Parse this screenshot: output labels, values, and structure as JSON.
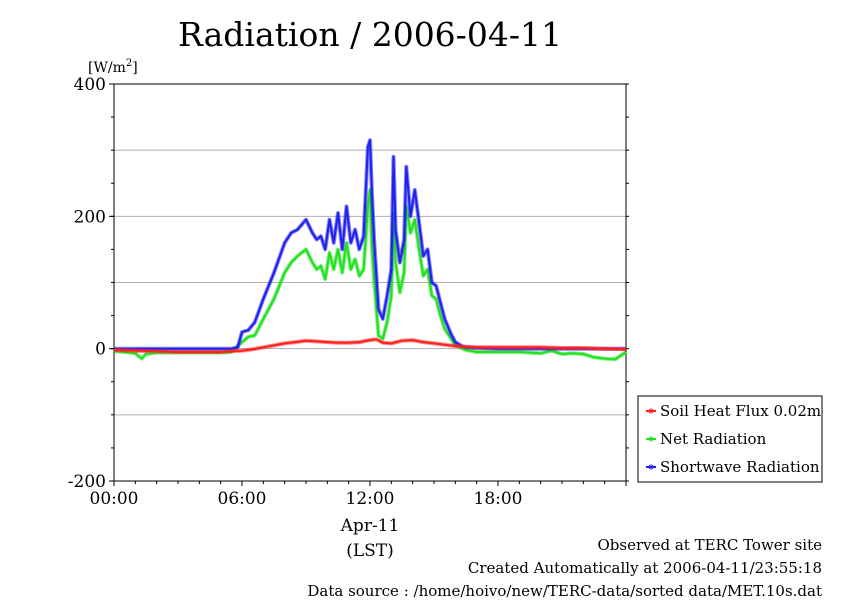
{
  "chart_data": {
    "type": "line",
    "title": "Radiation / 2006-04-11",
    "ylabel": "[W/m²]",
    "xlabel": "Apr-11",
    "xlabel2": "(LST)",
    "ylim": [
      -200,
      400
    ],
    "xlim_hours": [
      0,
      24
    ],
    "yticks": [
      -200,
      0,
      200,
      400
    ],
    "ytick_labels": [
      "-200",
      "0",
      "200",
      "400"
    ],
    "xticks": [
      0,
      6,
      12,
      18
    ],
    "xtick_labels": [
      "00:00",
      "06:00",
      "12:00",
      "18:00"
    ],
    "grid": true,
    "legend_position": "right",
    "series": [
      {
        "name": "Soil Heat Flux 0.02m",
        "color": "#ff2020",
        "x": [
          0,
          1,
          2,
          3,
          4,
          5,
          5.5,
          6,
          6.5,
          7,
          7.5,
          8,
          8.5,
          9,
          9.5,
          10,
          10.5,
          11,
          11.5,
          12,
          12.3,
          12.6,
          13,
          13.5,
          14,
          14.5,
          15,
          15.5,
          16,
          16.5,
          17,
          18,
          19,
          20,
          21,
          22,
          23,
          24
        ],
        "y": [
          -2,
          -3,
          -4,
          -5,
          -5,
          -5,
          -4,
          -3,
          -1,
          2,
          5,
          8,
          10,
          12,
          11,
          10,
          9,
          9,
          10,
          13,
          14,
          9,
          8,
          12,
          13,
          10,
          8,
          6,
          4,
          3,
          2,
          2,
          2,
          2,
          1,
          1,
          0,
          -1
        ]
      },
      {
        "name": "Net Radiation",
        "color": "#20e020",
        "x": [
          0,
          0.5,
          1,
          1.3,
          1.5,
          2,
          3,
          4,
          5,
          5.5,
          6,
          6.3,
          6.6,
          7,
          7.5,
          8,
          8.3,
          8.6,
          9,
          9.3,
          9.5,
          9.7,
          9.9,
          10.1,
          10.3,
          10.5,
          10.7,
          10.9,
          11.1,
          11.3,
          11.5,
          11.7,
          11.9,
          12.0,
          12.1,
          12.2,
          12.4,
          12.6,
          12.8,
          13.0,
          13.1,
          13.2,
          13.4,
          13.6,
          13.7,
          13.9,
          14.1,
          14.3,
          14.5,
          14.7,
          14.9,
          15.1,
          15.3,
          15.5,
          15.8,
          16,
          16.5,
          17,
          17.5,
          18,
          19,
          20,
          20.5,
          21,
          21.5,
          22,
          22.5,
          23,
          23.5,
          24
        ],
        "y": [
          -4,
          -5,
          -7,
          -15,
          -8,
          -6,
          -6,
          -6,
          -6,
          -5,
          10,
          18,
          20,
          45,
          75,
          115,
          130,
          140,
          150,
          130,
          120,
          125,
          105,
          145,
          120,
          150,
          115,
          160,
          120,
          135,
          110,
          120,
          215,
          240,
          150,
          100,
          20,
          15,
          40,
          80,
          205,
          130,
          85,
          115,
          215,
          175,
          195,
          150,
          110,
          120,
          80,
          75,
          50,
          30,
          15,
          5,
          -2,
          -5,
          -5,
          -5,
          -5,
          -7,
          -3,
          -8,
          -7,
          -8,
          -13,
          -15,
          -16,
          -5
        ]
      },
      {
        "name": "Shortwave Radiation",
        "color": "#2020f0",
        "x": [
          0,
          1,
          2,
          3,
          4,
          5,
          5.5,
          5.8,
          6,
          6.3,
          6.6,
          7,
          7.5,
          8,
          8.3,
          8.6,
          9,
          9.3,
          9.5,
          9.7,
          9.9,
          10.1,
          10.3,
          10.5,
          10.7,
          10.9,
          11.1,
          11.3,
          11.5,
          11.7,
          11.9,
          12.0,
          12.1,
          12.2,
          12.4,
          12.6,
          12.8,
          13.0,
          13.1,
          13.2,
          13.4,
          13.6,
          13.7,
          13.9,
          14.1,
          14.3,
          14.5,
          14.7,
          14.9,
          15.1,
          15.3,
          15.5,
          15.8,
          16,
          16.3,
          16.5,
          17,
          18,
          19,
          20,
          21,
          22,
          23,
          24
        ],
        "y": [
          0,
          0,
          0,
          0,
          0,
          0,
          0,
          2,
          25,
          28,
          40,
          75,
          115,
          160,
          175,
          180,
          195,
          175,
          165,
          170,
          150,
          195,
          160,
          205,
          150,
          215,
          160,
          180,
          150,
          170,
          305,
          315,
          230,
          160,
          60,
          45,
          80,
          120,
          290,
          180,
          130,
          165,
          275,
          200,
          240,
          190,
          140,
          150,
          100,
          95,
          70,
          45,
          22,
          10,
          4,
          2,
          1,
          0,
          0,
          0,
          0,
          0,
          0,
          0
        ]
      }
    ]
  },
  "footer": {
    "observed": "Observed at TERC Tower site",
    "created": "Created Automatically at 2006-04-11/23:55:18",
    "source": "Data source : /home/hoivo/new/TERC-data/sorted  data/MET.10s.dat"
  }
}
